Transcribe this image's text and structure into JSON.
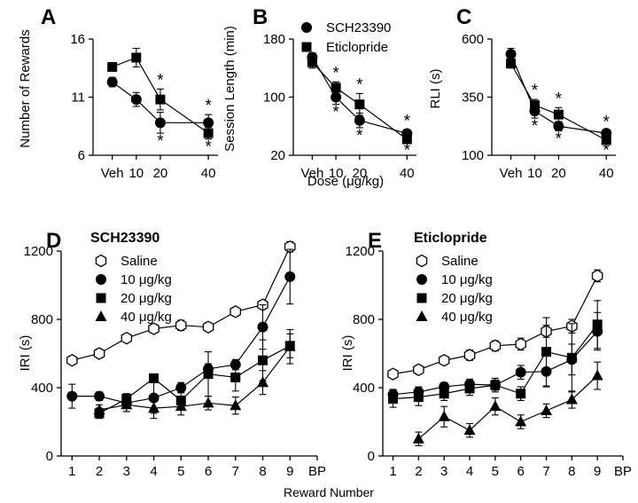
{
  "chart_data": [
    {
      "panel": "A",
      "type": "line",
      "ylabel": "Number of Rewards",
      "xlabel": "",
      "ylim": [
        6,
        16
      ],
      "yticks": [
        6,
        11,
        16
      ],
      "x": [
        0,
        10,
        20,
        40
      ],
      "xtick_labels": [
        "Veh",
        "10",
        "20",
        "40"
      ],
      "xlim": [
        -8,
        44
      ],
      "series": [
        {
          "name": "SCH23390",
          "marker": "circle",
          "values": [
            12.3,
            10.8,
            8.8,
            8.8
          ],
          "errors": [
            0.4,
            0.6,
            0.9,
            0.7
          ]
        },
        {
          "name": "Eticlopride",
          "marker": "square",
          "values": [
            13.6,
            14.4,
            10.8,
            7.9
          ],
          "errors": [
            0.2,
            0.8,
            0.9,
            0.5
          ]
        }
      ],
      "annotations": [
        {
          "x": 20,
          "side": "above",
          "text": "*"
        },
        {
          "x": 20,
          "side": "below",
          "text": "*"
        },
        {
          "x": 40,
          "side": "above",
          "text": "*"
        },
        {
          "x": 40,
          "side": "below",
          "text": "*"
        }
      ]
    },
    {
      "panel": "B",
      "type": "line",
      "ylabel": "Session Length (min)",
      "xlabel": "Dose (μg/kg)",
      "ylim": [
        20,
        180
      ],
      "yticks": [
        20,
        100,
        180
      ],
      "x": [
        0,
        10,
        20,
        40
      ],
      "xtick_labels": [
        "Veh",
        "10",
        "20",
        "40"
      ],
      "xlim": [
        -8,
        44
      ],
      "legend": [
        "SCH23390",
        "Eticlopride"
      ],
      "series": [
        {
          "name": "SCH23390",
          "marker": "circle",
          "values": [
            155,
            100,
            68,
            50
          ],
          "errors": [
            6,
            10,
            10,
            5
          ]
        },
        {
          "name": "Eticlopride",
          "marker": "square",
          "values": [
            148,
            113,
            90,
            42
          ],
          "errors": [
            8,
            8,
            15,
            4
          ]
        }
      ],
      "annotations": [
        {
          "x": 10,
          "side": "above",
          "text": "*"
        },
        {
          "x": 10,
          "side": "below",
          "text": "*"
        },
        {
          "x": 20,
          "side": "above",
          "text": "*"
        },
        {
          "x": 20,
          "side": "below",
          "text": "*"
        },
        {
          "x": 40,
          "side": "above",
          "text": "*"
        },
        {
          "x": 40,
          "side": "below",
          "text": "*"
        }
      ]
    },
    {
      "panel": "C",
      "type": "line",
      "ylabel": "RLI (s)",
      "xlabel": "",
      "ylim": [
        100,
        600
      ],
      "yticks": [
        100,
        350,
        600
      ],
      "x": [
        0,
        10,
        20,
        40
      ],
      "xtick_labels": [
        "Veh",
        "10",
        "20",
        "40"
      ],
      "xlim": [
        -8,
        44
      ],
      "series": [
        {
          "name": "SCH23390",
          "marker": "circle",
          "values": [
            535,
            290,
            225,
            195
          ],
          "errors": [
            25,
            30,
            20,
            10
          ]
        },
        {
          "name": "Eticlopride",
          "marker": "square",
          "values": [
            495,
            315,
            275,
            165
          ],
          "errors": [
            20,
            25,
            30,
            10
          ]
        }
      ],
      "annotations": [
        {
          "x": 10,
          "side": "above",
          "text": "*"
        },
        {
          "x": 10,
          "side": "below",
          "text": "*"
        },
        {
          "x": 20,
          "side": "above",
          "text": "*"
        },
        {
          "x": 20,
          "side": "below",
          "text": "*"
        },
        {
          "x": 40,
          "side": "above",
          "text": "*"
        },
        {
          "x": 40,
          "side": "below",
          "text": "*"
        }
      ]
    },
    {
      "panel": "D",
      "type": "line",
      "title": "SCH23390",
      "ylabel": "IRI (s)",
      "xlabel": "",
      "ylim": [
        0,
        1200
      ],
      "yticks": [
        0,
        400,
        800,
        1200
      ],
      "x": [
        1,
        2,
        3,
        4,
        5,
        6,
        7,
        8,
        9
      ],
      "xtick_labels": [
        "1",
        "2",
        "3",
        "4",
        "5",
        "6",
        "7",
        "8",
        "9",
        "BP"
      ],
      "xlim": [
        0.6,
        10.0
      ],
      "legend": [
        "Saline",
        "10 μg/kg",
        "20 μg/kg",
        "40 μg/kg"
      ],
      "series": [
        {
          "name": "Saline",
          "marker": "hexagon",
          "x": [
            1,
            2,
            3,
            4,
            5,
            6,
            7,
            8,
            9
          ],
          "values": [
            560,
            600,
            690,
            745,
            765,
            755,
            845,
            885,
            1225
          ],
          "errors": [
            15,
            25,
            20,
            25,
            30,
            25,
            25,
            25,
            30
          ]
        },
        {
          "name": "10 μg/kg",
          "marker": "circle",
          "x": [
            1,
            2,
            3,
            4,
            5,
            6,
            7,
            8,
            9
          ],
          "values": [
            350,
            350,
            310,
            340,
            400,
            510,
            535,
            755,
            1050
          ],
          "errors": [
            70,
            25,
            50,
            90,
            30,
            30,
            30,
            130,
            160
          ]
        },
        {
          "name": "20 μg/kg",
          "marker": "square",
          "x": [
            2,
            3,
            4,
            5,
            6,
            7,
            8,
            9
          ],
          "values": [
            250,
            335,
            455,
            325,
            480,
            460,
            560,
            645
          ],
          "errors": [
            30,
            30,
            20,
            50,
            130,
            80,
            120,
            70
          ]
        },
        {
          "name": "40 μg/kg",
          "marker": "triangle",
          "x": [
            2,
            3,
            4,
            5,
            6,
            7,
            8,
            9
          ],
          "values": [
            270,
            300,
            280,
            290,
            310,
            295,
            430,
            640
          ],
          "errors": [
            30,
            40,
            60,
            50,
            40,
            50,
            70,
            100
          ]
        }
      ]
    },
    {
      "panel": "E",
      "type": "line",
      "title": "Eticlopride",
      "ylabel": "IRI (s)",
      "xlabel": "Reward Number",
      "ylim": [
        0,
        1200
      ],
      "yticks": [
        0,
        400,
        800,
        1200
      ],
      "x": [
        1,
        2,
        3,
        4,
        5,
        6,
        7,
        8,
        9
      ],
      "xtick_labels": [
        "1",
        "2",
        "3",
        "4",
        "5",
        "6",
        "7",
        "8",
        "9",
        "BP"
      ],
      "xlim": [
        0.6,
        10.0
      ],
      "legend": [
        "Saline",
        "10 μg/kg",
        "20 μg/kg",
        "40 μg/kg"
      ],
      "series": [
        {
          "name": "Saline",
          "marker": "hexagon",
          "x": [
            1,
            2,
            3,
            4,
            5,
            6,
            7,
            8,
            9
          ],
          "values": [
            480,
            505,
            560,
            590,
            645,
            655,
            730,
            760,
            1055
          ],
          "errors": [
            20,
            25,
            25,
            30,
            30,
            35,
            35,
            40,
            35
          ]
        },
        {
          "name": "10 μg/kg",
          "marker": "circle",
          "x": [
            1,
            2,
            3,
            4,
            5,
            6,
            7,
            8,
            9
          ],
          "values": [
            360,
            375,
            405,
            420,
            415,
            490,
            495,
            565,
            730
          ],
          "errors": [
            30,
            30,
            25,
            30,
            30,
            40,
            90,
            90,
            110
          ]
        },
        {
          "name": "20 μg/kg",
          "marker": "square",
          "x": [
            1,
            2,
            3,
            4,
            5,
            6,
            7,
            8,
            9
          ],
          "values": [
            335,
            345,
            365,
            395,
            415,
            365,
            610,
            575,
            770
          ],
          "errors": [
            50,
            50,
            40,
            40,
            40,
            40,
            200,
            200,
            140
          ]
        },
        {
          "name": "40 μg/kg",
          "marker": "triangle",
          "x": [
            2,
            3,
            4,
            5,
            6,
            7,
            8,
            9
          ],
          "values": [
            100,
            230,
            150,
            290,
            200,
            265,
            330,
            470
          ],
          "errors": [
            40,
            60,
            40,
            50,
            40,
            40,
            50,
            80
          ]
        }
      ]
    }
  ]
}
